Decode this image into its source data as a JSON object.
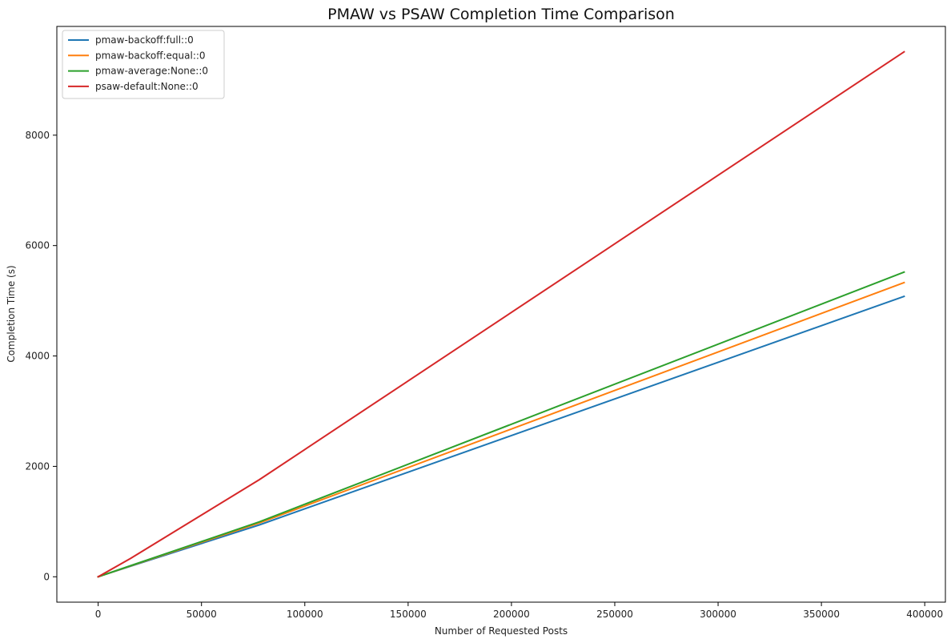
{
  "chart_data": {
    "type": "line",
    "title": "PMAW vs PSAW Completion Time Comparison",
    "xlabel": "Number of Requested Posts",
    "ylabel": "Completion Time (s)",
    "xlim": [
      -20000,
      410000
    ],
    "ylim": [
      -460,
      9970
    ],
    "xticks": [
      0,
      50000,
      100000,
      150000,
      200000,
      250000,
      300000,
      350000,
      400000
    ],
    "xtick_labels": [
      "0",
      "50000",
      "100000",
      "150000",
      "200000",
      "250000",
      "300000",
      "350000",
      "400000"
    ],
    "yticks": [
      0,
      2000,
      4000,
      6000,
      8000
    ],
    "ytick_labels": [
      "0",
      "2000",
      "4000",
      "6000",
      "8000"
    ],
    "grid": false,
    "legend_position": "upper-left",
    "x": [
      0,
      15600,
      78000,
      390000
    ],
    "series": [
      {
        "name": "pmaw-backoff:full::0",
        "color": "#1f77b4",
        "values": [
          0,
          190,
          940,
          5080
        ]
      },
      {
        "name": "pmaw-backoff:equal::0",
        "color": "#ff7f0e",
        "values": [
          0,
          195,
          975,
          5330
        ]
      },
      {
        "name": "pmaw-average:None::0",
        "color": "#2ca02c",
        "values": [
          0,
          200,
          995,
          5520
        ]
      },
      {
        "name": "psaw-default:None::0",
        "color": "#d62728",
        "values": [
          0,
          330,
          1760,
          9510
        ]
      }
    ]
  }
}
